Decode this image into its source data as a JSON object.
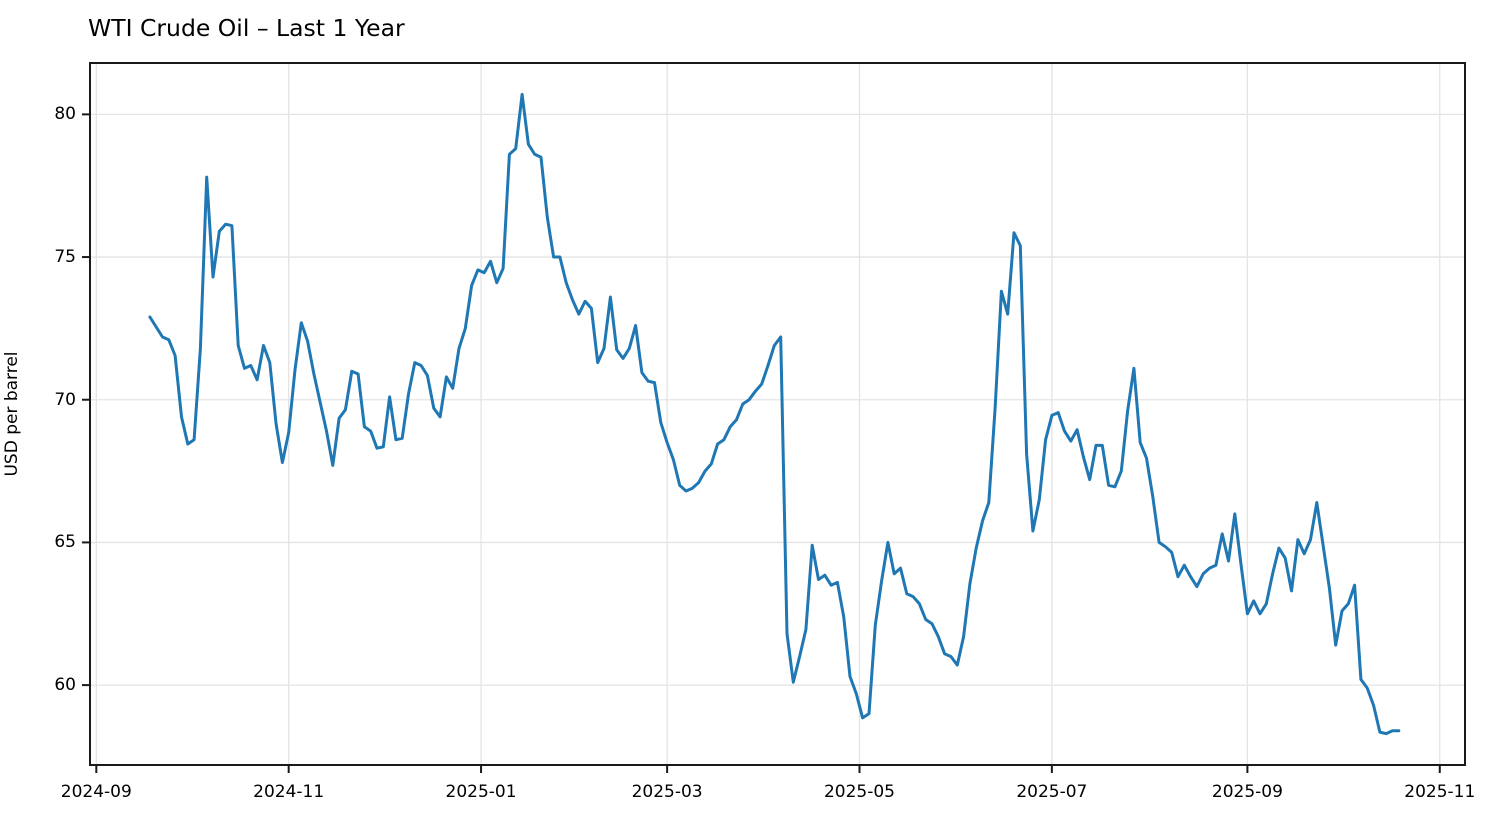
{
  "title": "WTI Crude Oil – Last 1 Year",
  "chart_data": {
    "type": "line",
    "title": "WTI Crude Oil – Last 1 Year",
    "xlabel": "",
    "ylabel": "USD per barrel",
    "grid": true,
    "legend_position": "none",
    "line_color": "#1f77b4",
    "grid_color": "#e4e4e4",
    "spine_color": "#1a1a1a",
    "xlim": [
      "2024-08-30",
      "2025-11-09"
    ],
    "ylim": [
      57.2,
      81.8
    ],
    "y_ticks": [
      60,
      65,
      70,
      75,
      80
    ],
    "y_tick_labels": [
      "60",
      "65",
      "70",
      "75",
      "80"
    ],
    "x_ticks": [
      "2024-09-01",
      "2024-11-01",
      "2025-01-01",
      "2025-03-01",
      "2025-05-01",
      "2025-07-01",
      "2025-09-01",
      "2025-11-01"
    ],
    "x_tick_labels": [
      "2024-09",
      "2024-11",
      "2025-01",
      "2025-03",
      "2025-05",
      "2025-07",
      "2025-09",
      "2025-11"
    ],
    "series": [
      {
        "name": "WTI spot price (USD per barrel)",
        "start_date": "2024-09-18",
        "interval_days": 2,
        "end_date": "2025-10-19",
        "values": [
          72.9,
          72.55,
          72.2,
          72.1,
          71.55,
          69.4,
          68.45,
          68.6,
          71.8,
          77.8,
          74.3,
          75.9,
          76.15,
          76.1,
          71.9,
          71.1,
          71.2,
          70.7,
          71.9,
          71.3,
          69.15,
          67.8,
          68.85,
          71.05,
          72.7,
          72.05,
          70.9,
          69.9,
          68.9,
          67.7,
          69.35,
          69.65,
          71.0,
          70.9,
          69.05,
          68.9,
          68.3,
          68.35,
          70.1,
          68.6,
          68.65,
          70.2,
          71.3,
          71.2,
          70.85,
          69.7,
          69.4,
          70.8,
          70.4,
          71.8,
          72.5,
          74.0,
          74.55,
          74.45,
          74.85,
          74.1,
          74.6,
          78.6,
          78.8,
          80.7,
          78.95,
          78.6,
          78.5,
          76.4,
          75.0,
          75.0,
          74.1,
          73.5,
          73.0,
          73.45,
          73.2,
          71.3,
          71.8,
          73.6,
          71.75,
          71.45,
          71.8,
          72.6,
          70.95,
          70.65,
          70.6,
          69.2,
          68.5,
          67.9,
          67.0,
          66.8,
          66.9,
          67.1,
          67.5,
          67.75,
          68.45,
          68.6,
          69.05,
          69.3,
          69.85,
          70.0,
          70.3,
          70.55,
          71.2,
          71.9,
          72.2,
          61.8,
          60.1,
          61.0,
          61.95,
          64.9,
          63.7,
          63.85,
          63.5,
          63.6,
          62.4,
          60.3,
          59.7,
          58.85,
          59.0,
          62.1,
          63.65,
          65.0,
          63.9,
          64.1,
          63.2,
          63.1,
          62.85,
          62.3,
          62.15,
          61.7,
          61.1,
          61.0,
          60.7,
          61.7,
          63.55,
          64.8,
          65.75,
          66.4,
          69.7,
          73.8,
          73.0,
          75.85,
          75.4,
          68.1,
          65.4,
          66.5,
          68.6,
          69.45,
          69.55,
          68.9,
          68.55,
          68.95,
          68.0,
          67.2,
          68.4,
          68.4,
          67.0,
          66.95,
          67.5,
          69.6,
          71.1,
          68.5,
          67.95,
          66.6,
          65.0,
          64.85,
          64.65,
          63.8,
          64.2,
          63.8,
          63.45,
          63.9,
          64.1,
          64.2,
          65.3,
          64.35,
          66.0,
          64.2,
          62.5,
          62.95,
          62.5,
          62.85,
          63.9,
          64.8,
          64.45,
          63.3,
          65.1,
          64.6,
          65.1,
          66.4,
          64.9,
          63.4,
          61.4,
          62.6,
          62.85,
          63.5,
          60.2,
          59.9,
          59.3,
          58.35,
          58.3,
          58.4,
          58.4
        ]
      }
    ]
  }
}
